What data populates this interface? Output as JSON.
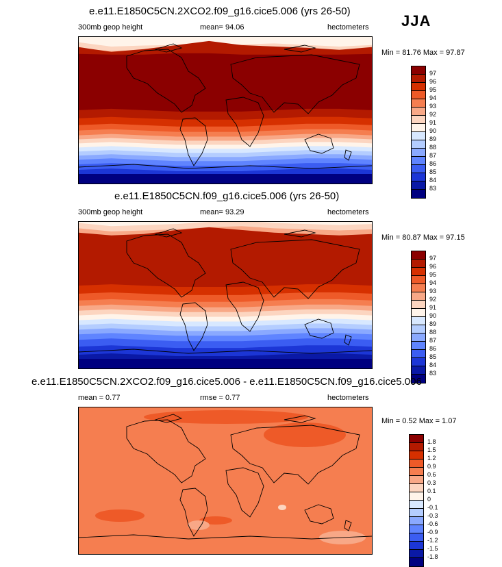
{
  "season": "JJA",
  "panels": [
    {
      "title": "e.e11.E1850C5CN.2XCO2.f09_g16.cice5.006 (yrs 26-50)",
      "left_label": "300mb geop height",
      "center_label": "mean=  94.06",
      "right_label": "hectometers",
      "minmax": "Min =  81.76 Max =  97.87",
      "legend_labels": [
        "97",
        "96",
        "95",
        "94",
        "93",
        "92",
        "91",
        "90",
        "89",
        "88",
        "87",
        "86",
        "85",
        "84",
        "83"
      ],
      "legend_colors": [
        "#8b0000",
        "#b31a00",
        "#d63000",
        "#ee5a28",
        "#f57e50",
        "#f8a887",
        "#fcd5c0",
        "#fff4ea",
        "#d8e8ff",
        "#b4cdff",
        "#8aa9ff",
        "#5f84ff",
        "#3b5df2",
        "#1c36d6",
        "#0a19a6",
        "#000080"
      ],
      "bands": [
        {
          "color": "#fff4ea",
          "ys": [
            50,
            58,
            56,
            55,
            57,
            54,
            52,
            55,
            58,
            55
          ]
        },
        {
          "color": "#fcd5c0",
          "ys": [
            62,
            66,
            64,
            62,
            60,
            58,
            60,
            62,
            64,
            62
          ]
        },
        {
          "color": "#f8a887",
          "ys": [
            70,
            74,
            72,
            70,
            67,
            66,
            68,
            70,
            72,
            70
          ]
        },
        {
          "color": "#f57e50",
          "ys": [
            80,
            86,
            82,
            78,
            74,
            76,
            78,
            80,
            83,
            80
          ]
        },
        {
          "color": "#ee5a28",
          "ys": [
            90,
            96,
            92,
            86,
            82,
            86,
            88,
            90,
            94,
            90
          ]
        },
        {
          "color": "#d63000",
          "ys": [
            104,
            112,
            108,
            98,
            92,
            98,
            102,
            104,
            108,
            104
          ]
        },
        {
          "color": "#b31a00",
          "ys": [
            115,
            122,
            118,
            112,
            106,
            112,
            114,
            116,
            119,
            115
          ]
        },
        {
          "color": "#8b0000",
          "ys": [
            125,
            126,
            126,
            124,
            124,
            126,
            126,
            126,
            126,
            125
          ]
        },
        {
          "color": "#b31a00",
          "ys": [
            208,
            206,
            208,
            210,
            210,
            210,
            208,
            206,
            206,
            208
          ]
        },
        {
          "color": "#d63000",
          "ys": [
            220,
            218,
            220,
            222,
            222,
            222,
            220,
            218,
            218,
            220
          ]
        },
        {
          "color": "#ee5a28",
          "ys": [
            230,
            228,
            230,
            232,
            232,
            232,
            230,
            228,
            228,
            230
          ]
        },
        {
          "color": "#f57e50",
          "ys": [
            238,
            236,
            238,
            240,
            240,
            240,
            238,
            236,
            236,
            238
          ]
        },
        {
          "color": "#f8a887",
          "ys": [
            245,
            243,
            245,
            247,
            247,
            247,
            245,
            243,
            243,
            245
          ]
        },
        {
          "color": "#fcd5c0",
          "ys": [
            251,
            249,
            251,
            253,
            253,
            253,
            251,
            249,
            249,
            251
          ]
        },
        {
          "color": "#fff4ea",
          "ys": [
            257,
            255,
            257,
            259,
            259,
            259,
            257,
            255,
            255,
            257
          ]
        },
        {
          "color": "#d8e8ff",
          "ys": [
            263,
            261,
            263,
            265,
            265,
            265,
            263,
            261,
            261,
            263
          ]
        },
        {
          "color": "#b4cdff",
          "ys": [
            269,
            267,
            269,
            271,
            271,
            271,
            269,
            267,
            267,
            269
          ]
        },
        {
          "color": "#8aa9ff",
          "ys": [
            275,
            273,
            275,
            277,
            277,
            277,
            275,
            273,
            273,
            275
          ]
        },
        {
          "color": "#5f84ff",
          "ys": [
            281,
            279,
            281,
            283,
            283,
            283,
            281,
            279,
            279,
            281
          ]
        },
        {
          "color": "#3b5df2",
          "ys": [
            288,
            286,
            288,
            290,
            290,
            290,
            288,
            286,
            286,
            288
          ]
        },
        {
          "color": "#1c36d6",
          "ys": [
            296,
            294,
            296,
            298,
            298,
            298,
            296,
            294,
            294,
            296
          ]
        },
        {
          "color": "#0a19a6",
          "ys": [
            306,
            304,
            306,
            308,
            308,
            308,
            306,
            304,
            304,
            306
          ]
        }
      ],
      "top_color": "#fdecdf",
      "bottom_color": "#000080"
    },
    {
      "title": "e.e11.E1850C5CN.f09_g16.cice5.006 (yrs 26-50)",
      "left_label": "300mb geop height",
      "center_label": "mean=  93.29",
      "right_label": "hectometers",
      "minmax": "Min =  80.87 Max =  97.15",
      "legend_labels": [
        "97",
        "96",
        "95",
        "94",
        "93",
        "92",
        "91",
        "90",
        "89",
        "88",
        "87",
        "86",
        "85",
        "84",
        "83"
      ],
      "legend_colors": [
        "#8b0000",
        "#b31a00",
        "#d63000",
        "#ee5a28",
        "#f57e50",
        "#f8a887",
        "#fcd5c0",
        "#fff4ea",
        "#d8e8ff",
        "#b4cdff",
        "#8aa9ff",
        "#5f84ff",
        "#3b5df2",
        "#1c36d6",
        "#0a19a6",
        "#000080"
      ],
      "bands": [
        {
          "color": "#fff4ea",
          "ys": [
            42,
            48,
            46,
            44,
            40,
            38,
            42,
            44,
            46,
            44
          ]
        },
        {
          "color": "#fcd5c0",
          "ys": [
            52,
            58,
            56,
            54,
            50,
            48,
            52,
            54,
            56,
            54
          ]
        },
        {
          "color": "#f8a887",
          "ys": [
            62,
            68,
            66,
            62,
            58,
            58,
            62,
            64,
            66,
            64
          ]
        },
        {
          "color": "#f57e50",
          "ys": [
            74,
            80,
            78,
            72,
            68,
            70,
            74,
            76,
            78,
            76
          ]
        },
        {
          "color": "#ee5a28",
          "ys": [
            86,
            92,
            90,
            82,
            78,
            82,
            86,
            88,
            90,
            88
          ]
        },
        {
          "color": "#d63000",
          "ys": [
            100,
            106,
            104,
            96,
            92,
            96,
            100,
            102,
            104,
            102
          ]
        },
        {
          "color": "#b31a00",
          "ys": [
            116,
            120,
            118,
            112,
            108,
            112,
            116,
            118,
            120,
            118
          ]
        },
        {
          "color": "#d63000",
          "ys": [
            194,
            192,
            194,
            196,
            196,
            196,
            194,
            192,
            192,
            194
          ]
        },
        {
          "color": "#ee5a28",
          "ys": [
            206,
            204,
            206,
            208,
            208,
            208,
            206,
            204,
            204,
            206
          ]
        },
        {
          "color": "#f57e50",
          "ys": [
            216,
            214,
            216,
            218,
            218,
            218,
            216,
            214,
            214,
            216
          ]
        },
        {
          "color": "#f8a887",
          "ys": [
            224,
            222,
            224,
            226,
            226,
            226,
            224,
            222,
            222,
            224
          ]
        },
        {
          "color": "#fcd5c0",
          "ys": [
            231,
            229,
            231,
            233,
            233,
            233,
            231,
            229,
            229,
            231
          ]
        },
        {
          "color": "#fff4ea",
          "ys": [
            238,
            236,
            238,
            240,
            240,
            240,
            238,
            236,
            236,
            238
          ]
        },
        {
          "color": "#d8e8ff",
          "ys": [
            245,
            243,
            245,
            247,
            247,
            247,
            245,
            243,
            243,
            245
          ]
        },
        {
          "color": "#b4cdff",
          "ys": [
            252,
            250,
            252,
            254,
            254,
            254,
            252,
            250,
            250,
            252
          ]
        },
        {
          "color": "#8aa9ff",
          "ys": [
            259,
            257,
            259,
            261,
            261,
            261,
            259,
            257,
            257,
            259
          ]
        },
        {
          "color": "#5f84ff",
          "ys": [
            266,
            264,
            266,
            268,
            268,
            268,
            266,
            264,
            264,
            266
          ]
        },
        {
          "color": "#3b5df2",
          "ys": [
            274,
            272,
            274,
            276,
            276,
            276,
            274,
            272,
            272,
            274
          ]
        },
        {
          "color": "#1c36d6",
          "ys": [
            284,
            282,
            284,
            286,
            286,
            286,
            284,
            282,
            282,
            284
          ]
        },
        {
          "color": "#0a19a6",
          "ys": [
            296,
            294,
            296,
            298,
            298,
            298,
            296,
            294,
            294,
            296
          ]
        }
      ],
      "top_color": "#d8e8ff",
      "bottom_color": "#000080"
    },
    {
      "title": "e.e11.E1850C5CN.2XCO2.f09_g16.cice5.006 - e.e11.E1850C5CN.f09_g16.cice5.006",
      "left_label": "mean =   0.77",
      "center_label": "rmse =   0.77",
      "right_label": "hectometers",
      "minmax": "Min =  0.52 Max =  1.07",
      "legend_labels": [
        "1.8",
        "1.5",
        "1.2",
        "0.9",
        "0.6",
        "0.3",
        "0.1",
        "0",
        "-0.1",
        "-0.3",
        "-0.6",
        "-0.9",
        "-1.2",
        "-1.5",
        "-1.8"
      ],
      "legend_colors": [
        "#8b0000",
        "#b31a00",
        "#d63000",
        "#ee5a28",
        "#f57e50",
        "#f8a887",
        "#fcd5c0",
        "#fff4ea",
        "#d8e8ff",
        "#b4cdff",
        "#8aa9ff",
        "#5f84ff",
        "#3b5df2",
        "#1c36d6",
        "#0a19a6",
        "#000080"
      ],
      "bands": [],
      "top_color": "#f57e50",
      "bottom_color": "#f57e50"
    }
  ]
}
